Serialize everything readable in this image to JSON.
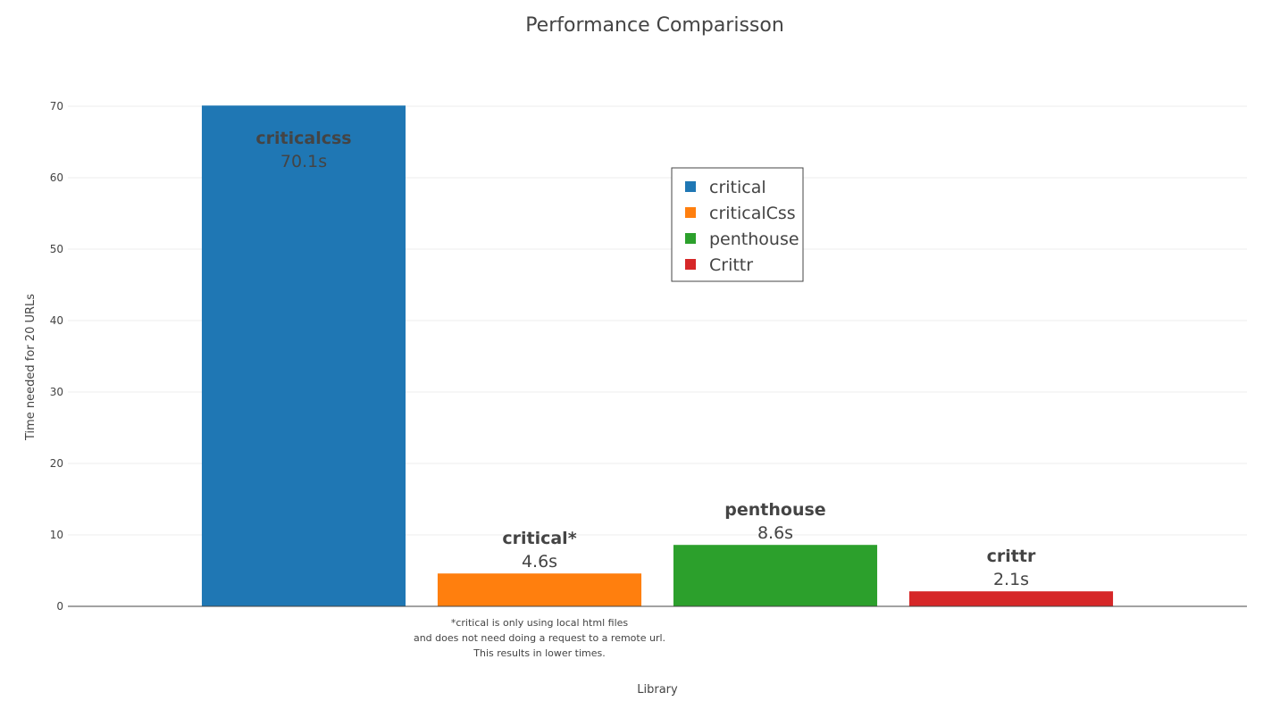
{
  "chart_data": {
    "type": "bar",
    "title": "Performance Comparisson",
    "xlabel": "Library",
    "ylabel": "Time needed for 20 URLs",
    "ylim": [
      0,
      70
    ],
    "yticks": [
      0,
      10,
      20,
      30,
      40,
      50,
      60,
      70
    ],
    "grid": true,
    "legend_position": "top-center",
    "series": [
      {
        "name": "critical",
        "color": "#1f77b4",
        "value": 70.1,
        "bar_name": "criticalcss",
        "bar_value_label": "70.1s",
        "label_position": "inside"
      },
      {
        "name": "criticalCss",
        "color": "#ff7f0e",
        "value": 4.6,
        "bar_name": "critical*",
        "bar_value_label": "4.6s",
        "label_position": "above"
      },
      {
        "name": "penthouse",
        "color": "#2ca02c",
        "value": 8.6,
        "bar_name": "penthouse",
        "bar_value_label": "8.6s",
        "label_position": "above"
      },
      {
        "name": "Crittr",
        "color": "#d62728",
        "value": 2.1,
        "bar_name": "crittr",
        "bar_value_label": "2.1s",
        "label_position": "above"
      }
    ],
    "annotation": [
      "*critical is only using local html files",
      "and does not need doing a request to a remote url.",
      "This results in lower times."
    ]
  }
}
